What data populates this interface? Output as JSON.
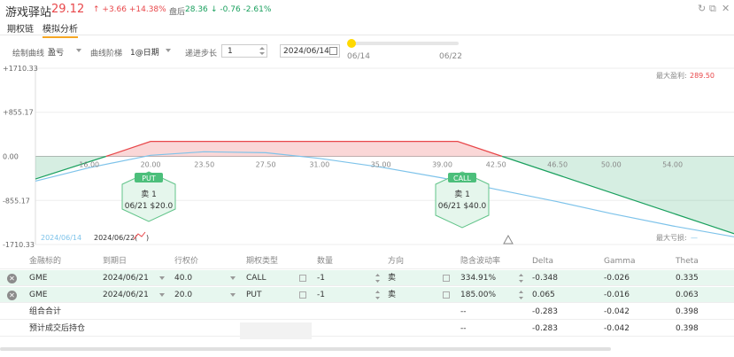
{
  "header": {
    "ticker": "游戏驿站",
    "price": "29.12",
    "change": "↑ +3.66 +14.38%",
    "after_hours_label": "盘后",
    "after_hours_price": "28.36",
    "after_hours_change": "↓ -0.76 -2.61%"
  },
  "tabs": [
    "期权链",
    "模拟分析"
  ],
  "toolbar": {
    "curve_label": "绘制曲线",
    "curve_value": "盈亏",
    "step_label": "曲线阶梯",
    "step_value": "1@日期",
    "increment_label": "递进步长",
    "increment_value": "1",
    "date_value": "2024/06/14",
    "slider_start": "06/14",
    "slider_end": "06/22"
  },
  "chart": {
    "y_ticks": [
      "+1710.33",
      "+855.17",
      "0.00",
      "-855.17",
      "-1710.33"
    ],
    "x_ticks": [
      "16.00",
      "20.00",
      "23.50",
      "27.50",
      "31.00",
      "35.00",
      "39.00",
      "42.50",
      "46.50",
      "50.00",
      "54.00"
    ],
    "max_profit_label": "最大盈利:",
    "max_profit_value": "289.50",
    "max_loss_label": "最大亏损:",
    "max_loss_value": "—",
    "legend_date1": "2024/06/14",
    "legend_date2": "2024/06/22(",
    "legend_date2_tail": ")",
    "put_marker": {
      "title": "PUT",
      "line1": "卖 1",
      "line2": "06/21 $20.0"
    },
    "call_marker": {
      "title": "CALL",
      "line1": "卖 1",
      "line2": "06/21 $40.0"
    },
    "colors": {
      "profit": "#e8474a",
      "loss": "#1aa05e",
      "curve_today": "#7ec3ea"
    }
  },
  "chart_data": {
    "type": "line",
    "x_ticks": [
      16.0,
      20.0,
      23.5,
      27.5,
      31.0,
      35.0,
      39.0,
      42.5,
      46.5,
      50.0,
      54.0
    ],
    "ylim": [
      -1710.33,
      1710.33
    ],
    "series": [
      {
        "name": "2024/06/22",
        "x": [
          12.5,
          17.1,
          20.0,
          40.0,
          42.9,
          58.0
        ],
        "y": [
          -440,
          0,
          289.5,
          289.5,
          0,
          -1500
        ]
      },
      {
        "name": "2024/06/14",
        "x": [
          12.5,
          16,
          20,
          23.5,
          27.5,
          31,
          35,
          39,
          42.5,
          46.5,
          50,
          54,
          58
        ],
        "y": [
          -480,
          -220,
          20,
          90,
          70,
          -40,
          -210,
          -420,
          -640,
          -880,
          -1110,
          -1350,
          -1560
        ]
      }
    ],
    "max_profit": 289.5
  },
  "table": {
    "headers": [
      "金融标的",
      "到期日",
      "行权价",
      "期权类型",
      "数量",
      "方向",
      "隐含波动率",
      "Delta",
      "Gamma",
      "Theta"
    ],
    "rows": [
      {
        "underlying": "GME",
        "expiry": "2024/06/21",
        "strike": "40.0",
        "type": "CALL",
        "qty": "-1",
        "dir": "卖",
        "iv": "334.91%",
        "delta": "-0.348",
        "gamma": "-0.026",
        "theta": "0.335"
      },
      {
        "underlying": "GME",
        "expiry": "2024/06/21",
        "strike": "20.0",
        "type": "PUT",
        "qty": "-1",
        "dir": "卖",
        "iv": "185.00%",
        "delta": "0.065",
        "gamma": "-0.016",
        "theta": "0.063"
      }
    ],
    "total": {
      "label": "组合合计",
      "iv": "--",
      "delta": "-0.283",
      "gamma": "-0.042",
      "theta": "0.398"
    },
    "expected": {
      "label": "预计成交后持仓",
      "iv": "--",
      "delta": "-0.283",
      "gamma": "-0.042",
      "theta": "0.398"
    }
  }
}
